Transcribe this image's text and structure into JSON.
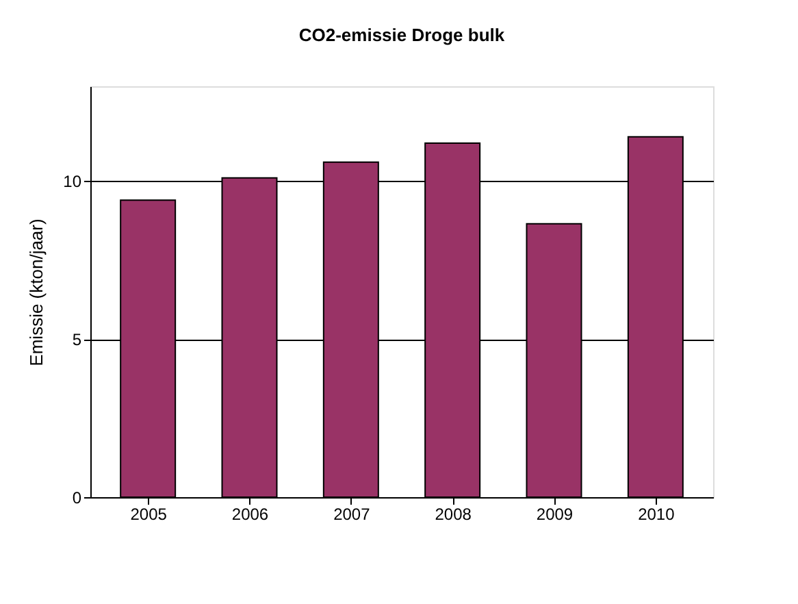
{
  "chart_data": {
    "type": "bar",
    "title": "CO2-emissie Droge bulk",
    "ylabel": "Emissie (kton/jaar)",
    "categories": [
      "2005",
      "2006",
      "2007",
      "2008",
      "2009",
      "2010"
    ],
    "values": [
      9.4,
      10.1,
      10.6,
      11.2,
      8.65,
      11.4
    ],
    "color": "#993366",
    "ylim": [
      0,
      13
    ],
    "yticks": [
      0,
      5,
      10
    ],
    "grid": "y"
  }
}
